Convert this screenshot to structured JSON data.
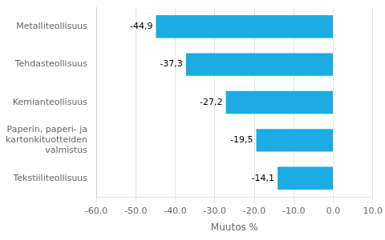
{
  "chart_data": {
    "type": "bar",
    "orientation": "horizontal",
    "categories": [
      "Metalliteollisuus",
      "Tehdasteollisuus",
      "Kemianteollisuus",
      "Paperin, paperi- ja kartonkituotteiden valmistus",
      "Tekstiiliteollisuus"
    ],
    "values": [
      -44.9,
      -37.3,
      -27.2,
      -19.5,
      -14.1
    ],
    "value_labels": [
      "-44,9",
      "-37,3",
      "-27,2",
      "-19,5",
      "-14,1"
    ],
    "data_labels": true,
    "color": "#1aace3",
    "xlabel": "Muutos %",
    "xlim": [
      -60,
      10
    ],
    "xticks": [
      {
        "value": -60,
        "label": "-60.0"
      },
      {
        "value": -50,
        "label": "-50.0"
      },
      {
        "value": -40,
        "label": "-40.0"
      },
      {
        "value": -30,
        "label": "-30.0"
      },
      {
        "value": -20,
        "label": "-20.0"
      },
      {
        "value": -10,
        "label": "-10.0"
      },
      {
        "value": 0,
        "label": "0.0"
      },
      {
        "value": 10,
        "label": "10.0"
      }
    ],
    "grid": true
  }
}
